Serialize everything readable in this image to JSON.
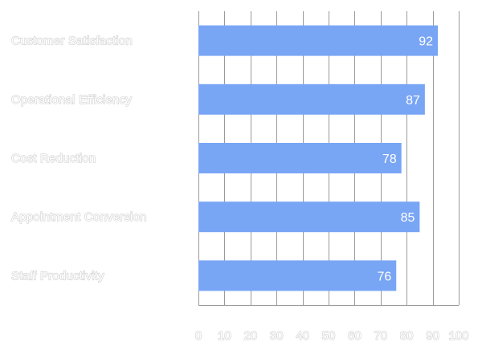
{
  "chart_data": {
    "type": "bar",
    "orientation": "horizontal",
    "categories": [
      "Customer Satisfaction",
      "Operational Efficiency",
      "Cost Reduction",
      "Appointment Conversion",
      "Staff Productivity"
    ],
    "values": [
      92,
      87,
      78,
      85,
      76
    ],
    "xlim": [
      0,
      100
    ],
    "xticks": [
      0,
      10,
      20,
      30,
      40,
      50,
      60,
      70,
      80,
      90,
      100
    ],
    "grid": true,
    "bar_color": "#79a5f5",
    "data_labels": true
  }
}
